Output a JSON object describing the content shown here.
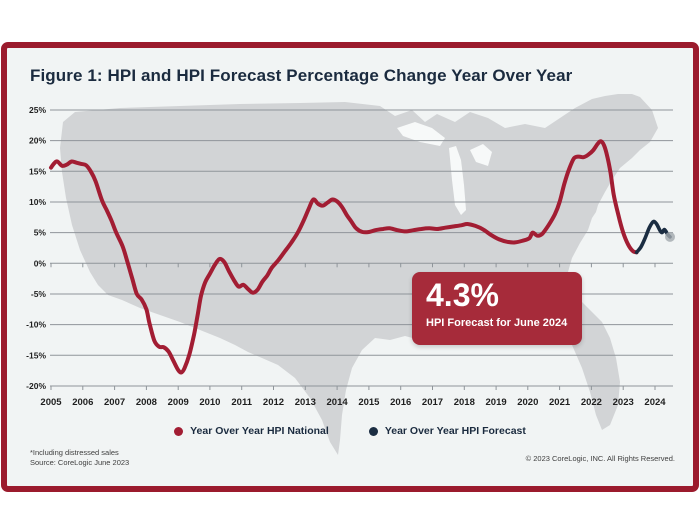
{
  "figure": {
    "title": "Figure 1: HPI and HPI Forecast Percentage Change Year Over Year",
    "callout": {
      "value": "4.3%",
      "label": "HPI Forecast for June 2024"
    },
    "legend": [
      {
        "label": "Year Over Year HPI National",
        "color": "#A21D33"
      },
      {
        "label": "Year Over Year HPI Forecast",
        "color": "#1B2D42"
      }
    ],
    "footnotes": [
      "*Including distressed sales",
      "Source: CoreLogic June 2023"
    ],
    "copyright": "© 2023 CoreLogic, INC. All Rights Reserved."
  },
  "colors": {
    "frame_border": "#9B1B2D",
    "panel_bg": "#F1F4F4",
    "national_line": "#A21D33",
    "forecast_line": "#1B2D42",
    "callout_bg": "#A62B3A",
    "title_text": "#1B2B3F",
    "grid_line": "#8F959A",
    "axis_text": "#1F1F1F",
    "map_fill": "#D2D4D6",
    "lake_fill": "#F7F9F9",
    "marker_fill": "#A3A9AE"
  },
  "chart_data": {
    "type": "line",
    "title": "Figure 1: HPI and HPI Forecast Percentage Change Year Over Year",
    "xlabel": "",
    "ylabel": "",
    "ylim": [
      -20,
      25
    ],
    "xlim": [
      2005,
      2024.6
    ],
    "grid": true,
    "legend_position": "bottom-center",
    "background": "us-map-silhouette",
    "y_ticks": [
      25,
      20,
      15,
      10,
      5,
      0,
      -5,
      -10,
      -15,
      -20
    ],
    "y_tick_labels": [
      "25%",
      "20%",
      "15%",
      "10%",
      "5%",
      "0%",
      "-5%",
      "-10%",
      "-15%",
      "-20%"
    ],
    "x_ticks": [
      2005,
      2006,
      2007,
      2008,
      2009,
      2010,
      2011,
      2012,
      2013,
      2014,
      2015,
      2016,
      2017,
      2018,
      2019,
      2020,
      2021,
      2022,
      2023,
      2024
    ],
    "x_tick_labels": [
      "2005",
      "2006",
      "2007",
      "2008",
      "2009",
      "2010",
      "2011",
      "2012",
      "2013",
      "2014",
      "2015",
      "2016",
      "2017",
      "2018",
      "2019",
      "2020",
      "2021",
      "2022",
      "2023",
      "2024"
    ],
    "annotation": {
      "value": "4.3%",
      "label": "HPI Forecast for June 2024",
      "series": "Year Over Year HPI Forecast",
      "x": 2024.5
    },
    "series": [
      {
        "name": "Year Over Year HPI National",
        "color": "#A21D33",
        "points": [
          [
            2005.0,
            15.6
          ],
          [
            2005.1,
            16.3
          ],
          [
            2005.2,
            16.6
          ],
          [
            2005.35,
            15.9
          ],
          [
            2005.5,
            16.1
          ],
          [
            2005.65,
            16.6
          ],
          [
            2005.8,
            16.4
          ],
          [
            2005.95,
            16.2
          ],
          [
            2006.1,
            16.0
          ],
          [
            2006.25,
            15.0
          ],
          [
            2006.4,
            13.4
          ],
          [
            2006.6,
            10.3
          ],
          [
            2006.75,
            8.7
          ],
          [
            2006.9,
            7.0
          ],
          [
            2007.05,
            5.0
          ],
          [
            2007.25,
            2.8
          ],
          [
            2007.4,
            0.3
          ],
          [
            2007.55,
            -2.4
          ],
          [
            2007.7,
            -5.0
          ],
          [
            2007.85,
            -5.9
          ],
          [
            2008.0,
            -7.5
          ],
          [
            2008.1,
            -9.8
          ],
          [
            2008.25,
            -12.6
          ],
          [
            2008.4,
            -13.6
          ],
          [
            2008.55,
            -13.7
          ],
          [
            2008.7,
            -14.4
          ],
          [
            2008.85,
            -15.9
          ],
          [
            2009.0,
            -17.4
          ],
          [
            2009.1,
            -17.8
          ],
          [
            2009.2,
            -17.1
          ],
          [
            2009.35,
            -14.9
          ],
          [
            2009.5,
            -11.6
          ],
          [
            2009.62,
            -8.2
          ],
          [
            2009.72,
            -5.3
          ],
          [
            2009.85,
            -3.1
          ],
          [
            2010.0,
            -1.7
          ],
          [
            2010.15,
            -0.3
          ],
          [
            2010.3,
            0.7
          ],
          [
            2010.45,
            0.2
          ],
          [
            2010.6,
            -1.3
          ],
          [
            2010.75,
            -2.7
          ],
          [
            2010.9,
            -3.8
          ],
          [
            2011.05,
            -3.5
          ],
          [
            2011.2,
            -4.2
          ],
          [
            2011.35,
            -4.8
          ],
          [
            2011.5,
            -4.3
          ],
          [
            2011.65,
            -3.0
          ],
          [
            2011.8,
            -2.0
          ],
          [
            2011.95,
            -0.7
          ],
          [
            2012.15,
            0.5
          ],
          [
            2012.35,
            1.9
          ],
          [
            2012.55,
            3.3
          ],
          [
            2012.75,
            4.9
          ],
          [
            2012.95,
            7.0
          ],
          [
            2013.1,
            8.8
          ],
          [
            2013.25,
            10.4
          ],
          [
            2013.4,
            9.7
          ],
          [
            2013.55,
            9.4
          ],
          [
            2013.7,
            9.9
          ],
          [
            2013.85,
            10.4
          ],
          [
            2014.0,
            10.1
          ],
          [
            2014.15,
            9.2
          ],
          [
            2014.3,
            7.9
          ],
          [
            2014.45,
            6.8
          ],
          [
            2014.6,
            5.7
          ],
          [
            2014.8,
            5.1
          ],
          [
            2015.0,
            5.1
          ],
          [
            2015.2,
            5.4
          ],
          [
            2015.45,
            5.6
          ],
          [
            2015.65,
            5.7
          ],
          [
            2015.9,
            5.4
          ],
          [
            2016.15,
            5.2
          ],
          [
            2016.4,
            5.4
          ],
          [
            2016.65,
            5.6
          ],
          [
            2016.9,
            5.7
          ],
          [
            2017.15,
            5.6
          ],
          [
            2017.4,
            5.8
          ],
          [
            2017.65,
            6.0
          ],
          [
            2017.9,
            6.2
          ],
          [
            2018.1,
            6.4
          ],
          [
            2018.35,
            6.1
          ],
          [
            2018.6,
            5.5
          ],
          [
            2018.85,
            4.6
          ],
          [
            2019.1,
            3.9
          ],
          [
            2019.35,
            3.5
          ],
          [
            2019.6,
            3.4
          ],
          [
            2019.85,
            3.7
          ],
          [
            2020.05,
            4.1
          ],
          [
            2020.15,
            5.0
          ],
          [
            2020.3,
            4.5
          ],
          [
            2020.45,
            4.8
          ],
          [
            2020.65,
            6.2
          ],
          [
            2020.85,
            8.0
          ],
          [
            2021.0,
            10.0
          ],
          [
            2021.15,
            13.0
          ],
          [
            2021.3,
            15.4
          ],
          [
            2021.45,
            17.1
          ],
          [
            2021.6,
            17.4
          ],
          [
            2021.75,
            17.3
          ],
          [
            2021.9,
            17.7
          ],
          [
            2022.05,
            18.4
          ],
          [
            2022.2,
            19.5
          ],
          [
            2022.3,
            19.9
          ],
          [
            2022.4,
            19.2
          ],
          [
            2022.5,
            17.4
          ],
          [
            2022.6,
            14.8
          ],
          [
            2022.7,
            11.2
          ],
          [
            2022.85,
            7.8
          ],
          [
            2023.0,
            5.0
          ],
          [
            2023.15,
            3.1
          ],
          [
            2023.3,
            2.0
          ],
          [
            2023.42,
            1.8
          ]
        ]
      },
      {
        "name": "Year Over Year HPI Forecast",
        "color": "#1B2D42",
        "end_marker": true,
        "points": [
          [
            2023.42,
            1.8
          ],
          [
            2023.55,
            2.6
          ],
          [
            2023.68,
            4.0
          ],
          [
            2023.82,
            5.8
          ],
          [
            2023.95,
            6.8
          ],
          [
            2024.05,
            6.4
          ],
          [
            2024.15,
            5.4
          ],
          [
            2024.22,
            5.0
          ],
          [
            2024.3,
            5.5
          ],
          [
            2024.4,
            4.7
          ],
          [
            2024.47,
            4.3
          ]
        ]
      }
    ]
  }
}
